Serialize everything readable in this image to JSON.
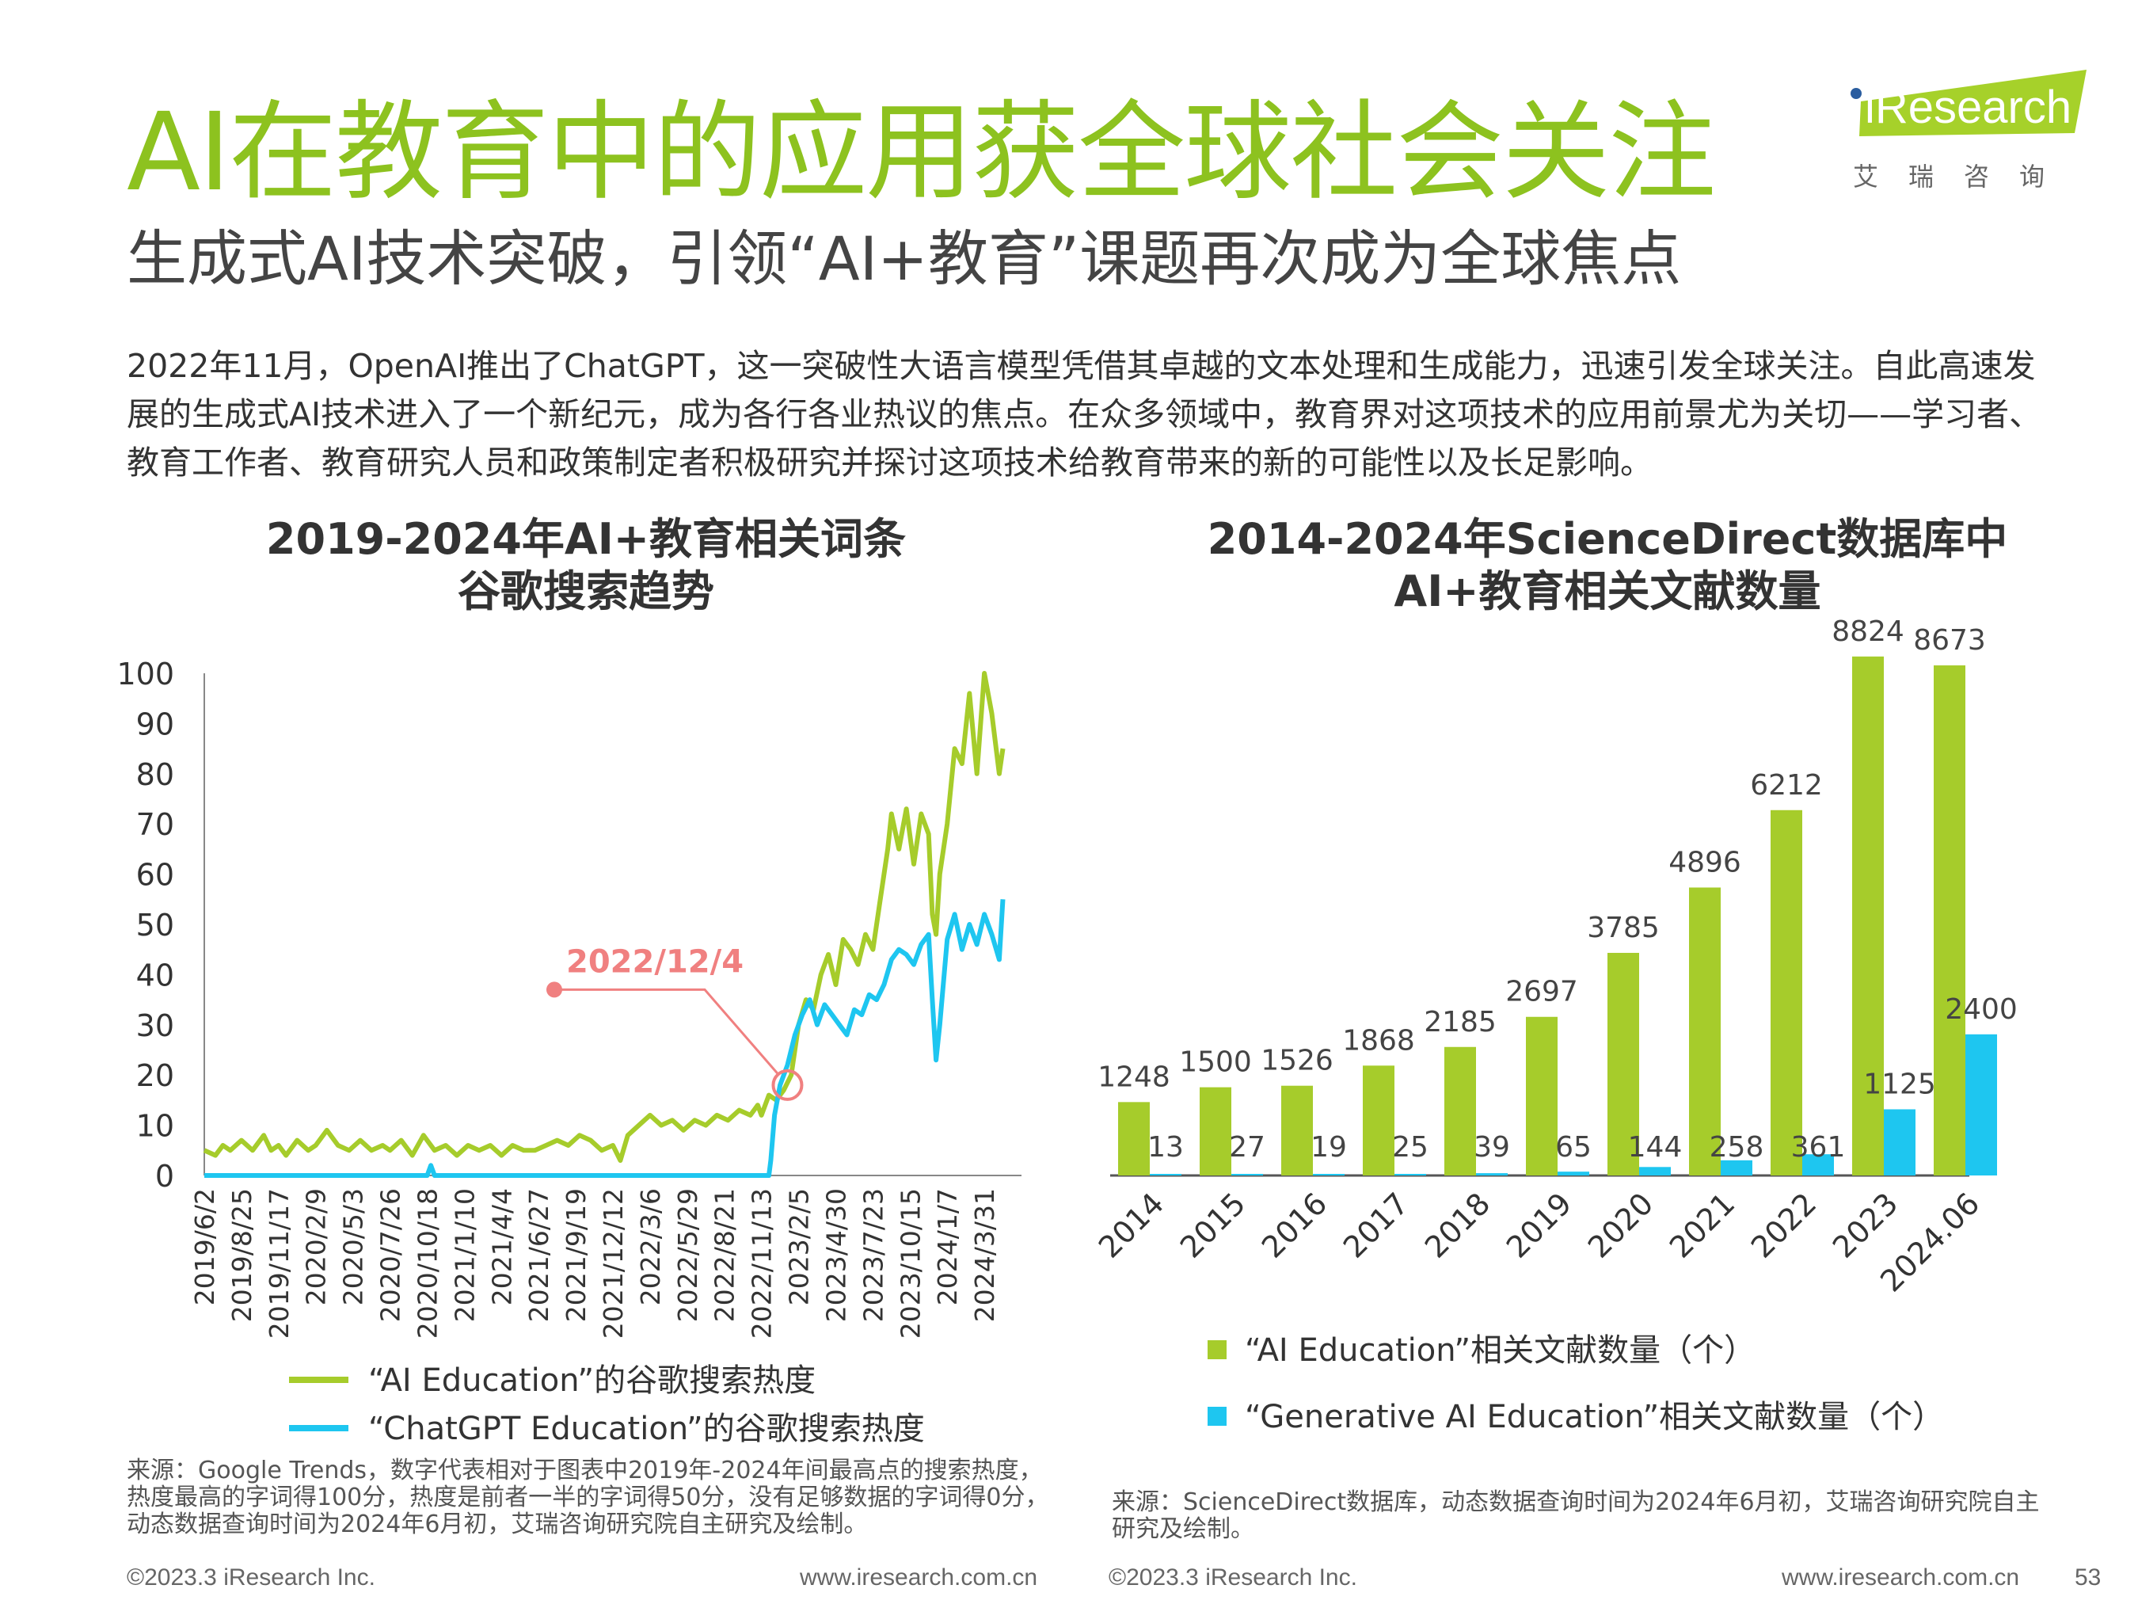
{
  "header": {
    "title": "AI在教育中的应用获全球社会关注",
    "subtitle": "生成式AI技术突破，引领“AI+教育”课题再次成为全球焦点",
    "intro": "2022年11月，OpenAI推出了ChatGPT，这一突破性大语言模型凭借其卓越的文本处理和生成能力，迅速引发全球关注。自此高速发展的生成式AI技术进入了一个新纪元，成为各行各业热议的焦点。在众多领域中，教育界对这项技术的应用前景尤为关切——学习者、教育工作者、教育研究人员和政策制定者积极研究并探讨这项技术给教育带来的新的可能性以及长足影响。"
  },
  "logo": {
    "brand": "iResearch",
    "cn": "艾瑞咨询"
  },
  "colors": {
    "green": "#a6cc2b",
    "blue": "#1ec6f0",
    "title_green": "#8dc21f",
    "annotation": "#f08080"
  },
  "left_chart": {
    "title_line1": "2019-2024年AI+教育相关词条",
    "title_line2": "谷歌搜索趋势",
    "annotation": "2022/12/4",
    "legend_green": "“AI Education”的谷歌搜索热度",
    "legend_blue": "“ChatGPT Education”的谷歌搜索热度",
    "source": "来源：Google Trends，数字代表相对于图表中2019年-2024年间最高点的搜索热度，热度最高的字词得100分，热度是前者一半的字词得50分，没有足够数据的字词得0分，动态数据查询时间为2024年6月初，艾瑞咨询研究院自主研究及绘制。"
  },
  "right_chart": {
    "title_line1": "2014-2024年ScienceDirect数据库中",
    "title_line2": "AI+教育相关文献数量",
    "legend_green": "“AI Education”相关文献数量（个）",
    "legend_blue": "“Generative AI Education”相关文献数量（个）",
    "source": "来源：ScienceDirect数据库，动态数据查询时间为2024年6月初，艾瑞咨询研究院自主研究及绘制。"
  },
  "footer": {
    "left_copyright": "©2023.3 iResearch Inc.",
    "left_url": "www.iresearch.com.cn",
    "right_copyright": "©2023.3 iResearch Inc.",
    "right_url": "www.iresearch.com.cn",
    "page": "53"
  },
  "chart_data": [
    {
      "type": "line",
      "ylim": [
        0,
        100
      ],
      "y_ticks": [
        0,
        10,
        20,
        30,
        40,
        50,
        60,
        70,
        80,
        90,
        100
      ],
      "x_ticks": [
        "2019/6/2",
        "2019/8/25",
        "2019/11/17",
        "2020/2/9",
        "2020/5/3",
        "2020/7/26",
        "2020/10/18",
        "2021/1/10",
        "2021/4/4",
        "2021/6/27",
        "2021/9/19",
        "2021/12/12",
        "2022/3/6",
        "2022/5/29",
        "2022/8/21",
        "2022/11/13",
        "2023/2/5",
        "2023/4/30",
        "2023/7/23",
        "2023/10/15",
        "2024/1/7",
        "2024/3/31"
      ],
      "series": [
        {
          "name": "“AI Education”的谷歌搜索热度",
          "points": [
            [
              0,
              5
            ],
            [
              0.3,
              4
            ],
            [
              0.5,
              6
            ],
            [
              0.7,
              5
            ],
            [
              1,
              7
            ],
            [
              1.3,
              5
            ],
            [
              1.6,
              8
            ],
            [
              1.8,
              5
            ],
            [
              2,
              6
            ],
            [
              2.2,
              4
            ],
            [
              2.5,
              7
            ],
            [
              2.8,
              5
            ],
            [
              3,
              6
            ],
            [
              3.3,
              9
            ],
            [
              3.6,
              6
            ],
            [
              3.9,
              5
            ],
            [
              4.2,
              7
            ],
            [
              4.5,
              5
            ],
            [
              4.8,
              6
            ],
            [
              5,
              5
            ],
            [
              5.3,
              7
            ],
            [
              5.6,
              4
            ],
            [
              5.9,
              8
            ],
            [
              6.2,
              5
            ],
            [
              6.5,
              6
            ],
            [
              6.8,
              4
            ],
            [
              7.1,
              6
            ],
            [
              7.4,
              5
            ],
            [
              7.7,
              6
            ],
            [
              8,
              4
            ],
            [
              8.3,
              6
            ],
            [
              8.6,
              5
            ],
            [
              8.9,
              5
            ],
            [
              9.2,
              6
            ],
            [
              9.5,
              7
            ],
            [
              9.8,
              6
            ],
            [
              10.1,
              8
            ],
            [
              10.4,
              7
            ],
            [
              10.7,
              5
            ],
            [
              11,
              6
            ],
            [
              11.2,
              3
            ],
            [
              11.4,
              8
            ],
            [
              11.7,
              10
            ],
            [
              12,
              12
            ],
            [
              12.3,
              10
            ],
            [
              12.6,
              11
            ],
            [
              12.9,
              9
            ],
            [
              13.2,
              11
            ],
            [
              13.5,
              10
            ],
            [
              13.8,
              12
            ],
            [
              14.1,
              11
            ],
            [
              14.4,
              13
            ],
            [
              14.7,
              12
            ],
            [
              14.9,
              14
            ],
            [
              15,
              12
            ],
            [
              15.2,
              16
            ],
            [
              15.4,
              15
            ],
            [
              15.6,
              17
            ],
            [
              15.8,
              20
            ],
            [
              16,
              30
            ],
            [
              16.2,
              35
            ],
            [
              16.4,
              33
            ],
            [
              16.6,
              40
            ],
            [
              16.8,
              44
            ],
            [
              17,
              38
            ],
            [
              17.2,
              47
            ],
            [
              17.4,
              45
            ],
            [
              17.6,
              42
            ],
            [
              17.8,
              48
            ],
            [
              18,
              45
            ],
            [
              18.2,
              55
            ],
            [
              18.4,
              65
            ],
            [
              18.5,
              72
            ],
            [
              18.7,
              65
            ],
            [
              18.9,
              73
            ],
            [
              19.1,
              62
            ],
            [
              19.3,
              72
            ],
            [
              19.5,
              68
            ],
            [
              19.6,
              52
            ],
            [
              19.7,
              48
            ],
            [
              19.8,
              60
            ],
            [
              20,
              70
            ],
            [
              20.2,
              85
            ],
            [
              20.4,
              82
            ],
            [
              20.6,
              96
            ],
            [
              20.8,
              80
            ],
            [
              21,
              100
            ],
            [
              21.2,
              92
            ],
            [
              21.4,
              80
            ],
            [
              21.5,
              85
            ]
          ]
        },
        {
          "name": "“ChatGPT Education”的谷歌搜索热度",
          "points": [
            [
              0,
              0
            ],
            [
              6,
              0
            ],
            [
              6.1,
              2
            ],
            [
              6.2,
              0
            ],
            [
              15.2,
              0
            ],
            [
              15.25,
              3
            ],
            [
              15.35,
              12
            ],
            [
              15.5,
              18
            ],
            [
              15.7,
              22
            ],
            [
              15.9,
              28
            ],
            [
              16.1,
              32
            ],
            [
              16.3,
              35
            ],
            [
              16.5,
              30
            ],
            [
              16.7,
              34
            ],
            [
              16.9,
              32
            ],
            [
              17.1,
              30
            ],
            [
              17.3,
              28
            ],
            [
              17.5,
              33
            ],
            [
              17.7,
              32
            ],
            [
              17.9,
              36
            ],
            [
              18.1,
              35
            ],
            [
              18.3,
              38
            ],
            [
              18.5,
              43
            ],
            [
              18.7,
              45
            ],
            [
              18.9,
              44
            ],
            [
              19.1,
              42
            ],
            [
              19.3,
              46
            ],
            [
              19.5,
              48
            ],
            [
              19.6,
              35
            ],
            [
              19.7,
              23
            ],
            [
              19.8,
              30
            ],
            [
              20,
              47
            ],
            [
              20.2,
              52
            ],
            [
              20.4,
              45
            ],
            [
              20.6,
              50
            ],
            [
              20.8,
              46
            ],
            [
              21,
              52
            ],
            [
              21.2,
              48
            ],
            [
              21.4,
              43
            ],
            [
              21.5,
              55
            ]
          ]
        }
      ]
    },
    {
      "type": "bar",
      "categories": [
        "2014",
        "2015",
        "2016",
        "2017",
        "2018",
        "2019",
        "2020",
        "2021",
        "2022",
        "2023",
        "2024.06"
      ],
      "series": [
        {
          "name": "“AI Education”相关文献数量（个）",
          "values": [
            1248,
            1500,
            1526,
            1868,
            2185,
            2697,
            3785,
            4896,
            6212,
            8824,
            8673
          ]
        },
        {
          "name": "“Generative AI Education”相关文献数量（个）",
          "values": [
            13,
            27,
            19,
            25,
            39,
            65,
            144,
            258,
            361,
            1125,
            2400
          ]
        }
      ]
    }
  ]
}
